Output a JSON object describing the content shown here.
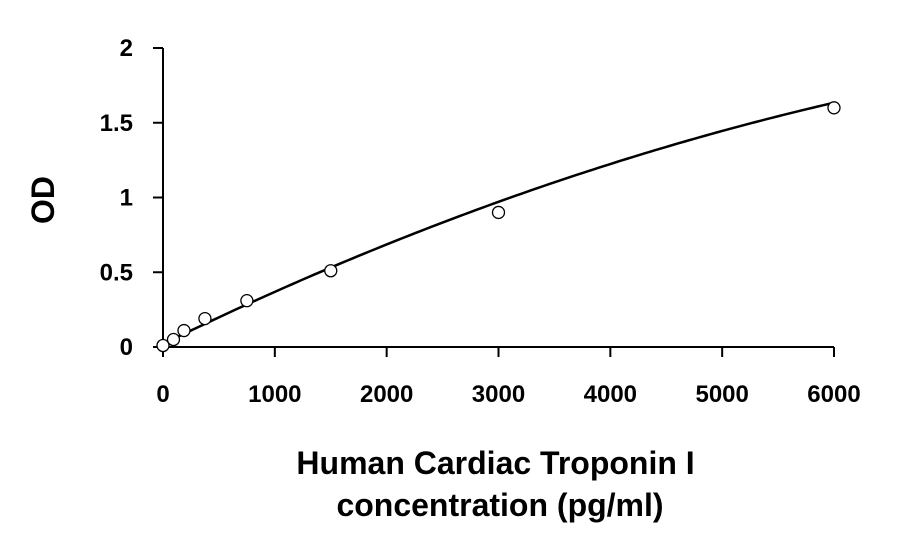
{
  "chart_data": {
    "type": "scatter",
    "title": "",
    "ylabel": "OD",
    "xlabel_lines": [
      "Human Cardiac Troponin I",
      "concentration (pg/ml)"
    ],
    "xlim": [
      0,
      6000
    ],
    "ylim": [
      0,
      2
    ],
    "x_ticks": [
      0,
      1000,
      2000,
      3000,
      4000,
      5000,
      6000
    ],
    "y_ticks": [
      0,
      0.5,
      1,
      1.5,
      2
    ],
    "x_tick_labels": [
      "0",
      "1000",
      "2000",
      "3000",
      "4000",
      "5000",
      "6000"
    ],
    "y_tick_labels": [
      "0",
      "0.5",
      "1",
      "1.5",
      "2"
    ],
    "grid": false,
    "legend": "none",
    "series": [
      {
        "marker": "open-circle",
        "x": [
          0,
          93.75,
          187.5,
          375,
          750,
          1500,
          3000,
          6000
        ],
        "y": [
          0.01,
          0.05,
          0.11,
          0.19,
          0.31,
          0.51,
          0.9,
          1.6
        ]
      }
    ],
    "trendline": {
      "type": "polynomial",
      "coefficients": [
        0.02,
        0.000365,
        -1.6e-08
      ]
    }
  }
}
